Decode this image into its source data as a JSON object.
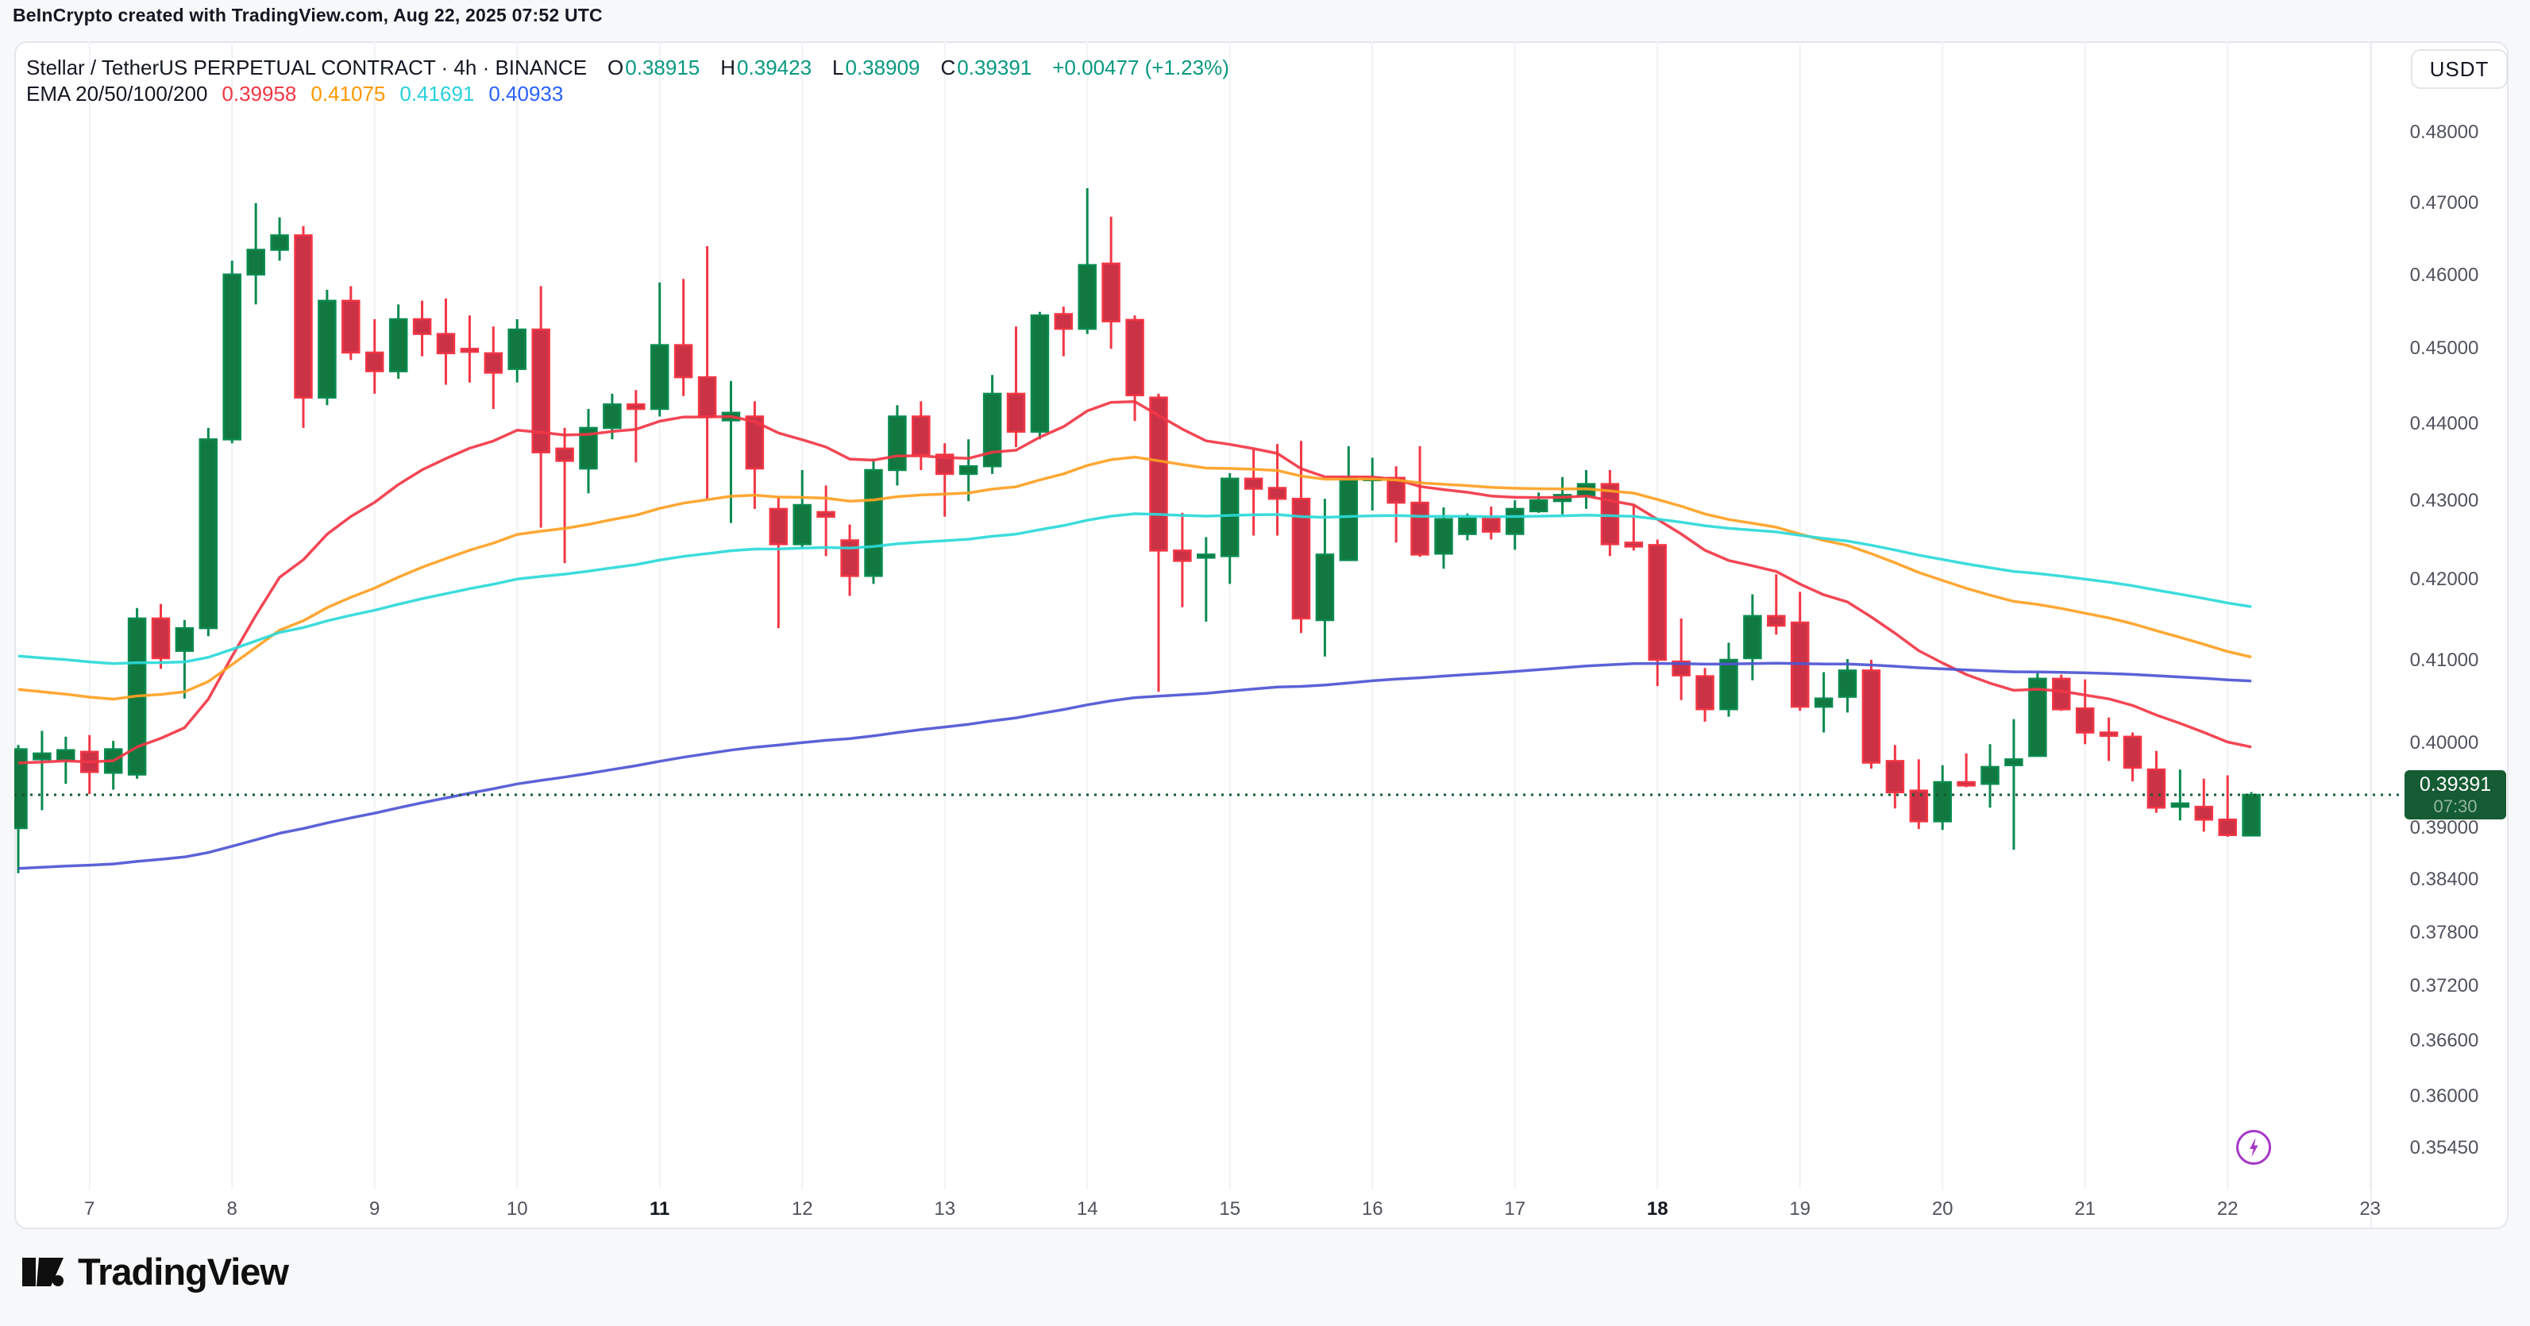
{
  "page": {
    "attribution": "BeInCrypto created with TradingView.com, Aug 22, 2025 07:52 UTC"
  },
  "header": {
    "title": "Stellar / TetherUS PERPETUAL CONTRACT · 4h · BINANCE",
    "ohlc": {
      "o_label": "O",
      "o": "0.38915",
      "h_label": "H",
      "h": "0.39423",
      "l_label": "L",
      "l": "0.38909",
      "c_label": "C",
      "c": "0.39391",
      "change": "+0.00477 (+1.23%)"
    },
    "ema_label": "EMA 20/50/100/200",
    "ema_values": [
      "0.39958",
      "0.41075",
      "0.41691",
      "0.40933"
    ]
  },
  "price_axis": {
    "currency": "USDT",
    "labels": [
      {
        "text": "0.48000",
        "value": 0.48
      },
      {
        "text": "0.47000",
        "value": 0.47
      },
      {
        "text": "0.46000",
        "value": 0.46
      },
      {
        "text": "0.45000",
        "value": 0.45
      },
      {
        "text": "0.44000",
        "value": 0.44
      },
      {
        "text": "0.43000",
        "value": 0.43
      },
      {
        "text": "0.42000",
        "value": 0.42
      },
      {
        "text": "0.41000",
        "value": 0.41
      },
      {
        "text": "0.40000",
        "value": 0.4
      },
      {
        "text": "0.39000",
        "value": 0.39
      },
      {
        "text": "0.38400",
        "value": 0.384
      },
      {
        "text": "0.37800",
        "value": 0.378
      },
      {
        "text": "0.37200",
        "value": 0.372
      },
      {
        "text": "0.36600",
        "value": 0.366
      },
      {
        "text": "0.36000",
        "value": 0.36
      },
      {
        "text": "0.35450",
        "value": 0.3545
      }
    ],
    "badge": {
      "price": "0.39391",
      "countdown": "07:30"
    }
  },
  "time_axis": {
    "labels": [
      {
        "text": "7",
        "bold": false
      },
      {
        "text": "8",
        "bold": false
      },
      {
        "text": "9",
        "bold": false
      },
      {
        "text": "10",
        "bold": false
      },
      {
        "text": "11",
        "bold": true
      },
      {
        "text": "12",
        "bold": false
      },
      {
        "text": "13",
        "bold": false
      },
      {
        "text": "14",
        "bold": false
      },
      {
        "text": "15",
        "bold": false
      },
      {
        "text": "16",
        "bold": false
      },
      {
        "text": "17",
        "bold": false
      },
      {
        "text": "18",
        "bold": true
      },
      {
        "text": "19",
        "bold": false
      },
      {
        "text": "20",
        "bold": false
      },
      {
        "text": "21",
        "bold": false
      },
      {
        "text": "22",
        "bold": false
      },
      {
        "text": "23",
        "bold": false
      }
    ]
  },
  "footer": {
    "logo_text": "TradingView"
  },
  "colors": {
    "up_fill": "#11793f",
    "up_stroke": "#0b8a50",
    "down_fill": "#cc3246",
    "down_stroke": "#f23645",
    "ema20": "#f23645",
    "ema50": "#ffa022",
    "ema100": "#2cd9d9",
    "ema200": "#4e55d4",
    "last_price_line": "#155b33",
    "badge_bg": "#155b33",
    "grid": "#f1f2f4",
    "boost_purple": "#a637c6"
  },
  "chart_data": {
    "type": "candlestick",
    "title": "Stellar / TetherUS PERPETUAL CONTRACT",
    "exchange": "BINANCE",
    "interval": "4h",
    "start_time": "Aug 6 2025 12:00 UTC",
    "interval_hours": 4,
    "scale": "log",
    "y_axis_range_price": [
      0.346,
      0.493
    ],
    "last_price": 0.39391,
    "legend_emas": {
      "ema20": 0.39958,
      "ema50": 0.41075,
      "ema100": 0.41691,
      "ema200": 0.40933
    },
    "ema_series": [
      {
        "name": "EMA 20",
        "period": 20,
        "seed": 0.3975
      },
      {
        "name": "EMA 50",
        "period": 50,
        "seed": 0.4068
      },
      {
        "name": "EMA 100",
        "period": 100,
        "seed": 0.4108
      },
      {
        "name": "EMA 200",
        "period": 200,
        "seed": 0.3852
      }
    ],
    "candles_format": [
      "open",
      "high",
      "low",
      "close"
    ],
    "candles": [
      [
        0.39,
        0.3998,
        0.3848,
        0.3993
      ],
      [
        0.3981,
        0.4015,
        0.3921,
        0.3988
      ],
      [
        0.398,
        0.4008,
        0.3952,
        0.3992
      ],
      [
        0.399,
        0.401,
        0.394,
        0.3966
      ],
      [
        0.3965,
        0.4003,
        0.3945,
        0.3993
      ],
      [
        0.3963,
        0.4165,
        0.3958,
        0.4152
      ],
      [
        0.4152,
        0.417,
        0.409,
        0.4103
      ],
      [
        0.4112,
        0.415,
        0.4054,
        0.414
      ],
      [
        0.414,
        0.4395,
        0.413,
        0.438
      ],
      [
        0.438,
        0.462,
        0.4375,
        0.4601
      ],
      [
        0.4601,
        0.47,
        0.456,
        0.4635
      ],
      [
        0.4635,
        0.468,
        0.462,
        0.4655
      ],
      [
        0.4655,
        0.4668,
        0.4395,
        0.4435
      ],
      [
        0.4435,
        0.458,
        0.4425,
        0.4565
      ],
      [
        0.4565,
        0.4585,
        0.4485,
        0.4495
      ],
      [
        0.4495,
        0.454,
        0.444,
        0.447
      ],
      [
        0.447,
        0.456,
        0.446,
        0.454
      ],
      [
        0.454,
        0.4565,
        0.449,
        0.452
      ],
      [
        0.452,
        0.4568,
        0.4452,
        0.4494
      ],
      [
        0.45,
        0.4545,
        0.4455,
        0.4496
      ],
      [
        0.4494,
        0.453,
        0.442,
        0.4468
      ],
      [
        0.4473,
        0.454,
        0.4455,
        0.4526
      ],
      [
        0.4526,
        0.4585,
        0.4266,
        0.4363
      ],
      [
        0.4368,
        0.4395,
        0.4221,
        0.4352
      ],
      [
        0.4342,
        0.442,
        0.431,
        0.4395
      ],
      [
        0.4395,
        0.444,
        0.438,
        0.4426
      ],
      [
        0.4426,
        0.4445,
        0.435,
        0.442
      ],
      [
        0.442,
        0.459,
        0.441,
        0.4505
      ],
      [
        0.4505,
        0.4595,
        0.4437,
        0.4462
      ],
      [
        0.4462,
        0.464,
        0.4303,
        0.441
      ],
      [
        0.4405,
        0.4457,
        0.4272,
        0.4415
      ],
      [
        0.441,
        0.443,
        0.429,
        0.4342
      ],
      [
        0.429,
        0.4306,
        0.414,
        0.4245
      ],
      [
        0.4245,
        0.434,
        0.424,
        0.4295
      ],
      [
        0.4286,
        0.432,
        0.423,
        0.428
      ],
      [
        0.425,
        0.427,
        0.418,
        0.4205
      ],
      [
        0.4205,
        0.4355,
        0.4195,
        0.434
      ],
      [
        0.434,
        0.4425,
        0.432,
        0.441
      ],
      [
        0.441,
        0.443,
        0.434,
        0.436
      ],
      [
        0.436,
        0.4375,
        0.428,
        0.4335
      ],
      [
        0.4335,
        0.438,
        0.43,
        0.4345
      ],
      [
        0.4345,
        0.4465,
        0.4335,
        0.444
      ],
      [
        0.444,
        0.453,
        0.437,
        0.439
      ],
      [
        0.439,
        0.455,
        0.438,
        0.4545
      ],
      [
        0.4547,
        0.4557,
        0.449,
        0.4527
      ],
      [
        0.4527,
        0.4721,
        0.452,
        0.4614
      ],
      [
        0.4616,
        0.4681,
        0.45,
        0.4537
      ],
      [
        0.4539,
        0.4545,
        0.4404,
        0.4438
      ],
      [
        0.4435,
        0.444,
        0.4062,
        0.4237
      ],
      [
        0.4237,
        0.4285,
        0.4166,
        0.4224
      ],
      [
        0.4228,
        0.4254,
        0.4148,
        0.4232
      ],
      [
        0.423,
        0.4336,
        0.4195,
        0.4329
      ],
      [
        0.4329,
        0.4367,
        0.4256,
        0.4316
      ],
      [
        0.4317,
        0.4374,
        0.4256,
        0.4303
      ],
      [
        0.4303,
        0.4378,
        0.4134,
        0.4152
      ],
      [
        0.415,
        0.4303,
        0.4105,
        0.4232
      ],
      [
        0.4225,
        0.4371,
        0.4225,
        0.433
      ],
      [
        0.433,
        0.4356,
        0.4288,
        0.433
      ],
      [
        0.433,
        0.4345,
        0.4247,
        0.4298
      ],
      [
        0.4298,
        0.4371,
        0.4229,
        0.4232
      ],
      [
        0.4233,
        0.4292,
        0.4214,
        0.4277
      ],
      [
        0.4258,
        0.4284,
        0.425,
        0.4278
      ],
      [
        0.4278,
        0.4293,
        0.4251,
        0.4261
      ],
      [
        0.4258,
        0.4301,
        0.4238,
        0.429
      ],
      [
        0.4287,
        0.4311,
        0.4285,
        0.4301
      ],
      [
        0.43,
        0.4331,
        0.4283,
        0.4308
      ],
      [
        0.4307,
        0.434,
        0.429,
        0.4322
      ],
      [
        0.4322,
        0.434,
        0.423,
        0.4245
      ],
      [
        0.4247,
        0.4295,
        0.4237,
        0.4242
      ],
      [
        0.4244,
        0.4251,
        0.4069,
        0.4101
      ],
      [
        0.4099,
        0.4152,
        0.4052,
        0.4082
      ],
      [
        0.4081,
        0.4091,
        0.4026,
        0.4041
      ],
      [
        0.4041,
        0.4122,
        0.4032,
        0.4101
      ],
      [
        0.4103,
        0.4182,
        0.4076,
        0.4155
      ],
      [
        0.4155,
        0.4207,
        0.4132,
        0.4143
      ],
      [
        0.4147,
        0.4185,
        0.4039,
        0.4044
      ],
      [
        0.4044,
        0.4086,
        0.4013,
        0.4054
      ],
      [
        0.4056,
        0.4102,
        0.4037,
        0.4088
      ],
      [
        0.4088,
        0.4101,
        0.397,
        0.3977
      ],
      [
        0.3979,
        0.3998,
        0.3923,
        0.3942
      ],
      [
        0.3944,
        0.3981,
        0.3899,
        0.3908
      ],
      [
        0.3908,
        0.3974,
        0.3898,
        0.3954
      ],
      [
        0.3954,
        0.3988,
        0.3948,
        0.395
      ],
      [
        0.3952,
        0.3999,
        0.3924,
        0.3972
      ],
      [
        0.3974,
        0.4029,
        0.3875,
        0.3981
      ],
      [
        0.3985,
        0.4085,
        0.3985,
        0.4078
      ],
      [
        0.4078,
        0.4083,
        0.4039,
        0.4041
      ],
      [
        0.4042,
        0.4077,
        0.3999,
        0.4013
      ],
      [
        0.4013,
        0.4031,
        0.3979,
        0.4009
      ],
      [
        0.4008,
        0.4013,
        0.3955,
        0.3971
      ],
      [
        0.3969,
        0.3991,
        0.3918,
        0.3924
      ],
      [
        0.3925,
        0.3969,
        0.3909,
        0.3929
      ],
      [
        0.3925,
        0.3958,
        0.3896,
        0.391
      ],
      [
        0.391,
        0.3962,
        0.389,
        0.3892
      ],
      [
        0.38915,
        0.39423,
        0.38909,
        0.39391
      ]
    ]
  }
}
